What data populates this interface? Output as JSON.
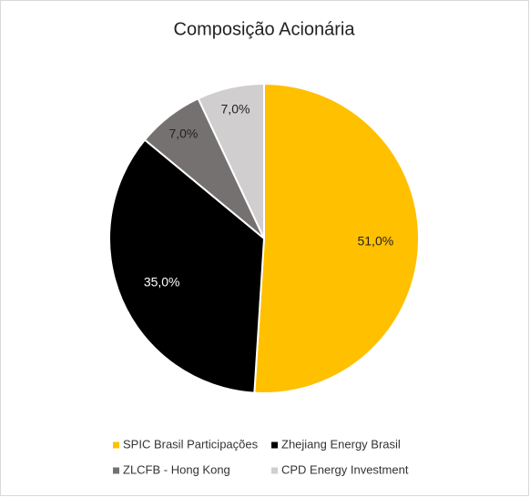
{
  "chart_data": {
    "type": "pie",
    "title": "Composição Acionária",
    "categories": [
      "SPIC Brasil Participações",
      "Zhejiang Energy Brasil",
      "ZLCFB - Hong Kong",
      "CPD Energy Investment"
    ],
    "values": [
      51,
      35,
      7,
      7
    ],
    "value_labels": [
      "51,0%",
      "35,0%",
      "7,0%",
      "7,0%"
    ],
    "colors": [
      "#FFC000",
      "#000000",
      "#767171",
      "#D0CECE"
    ],
    "legend": "bottom"
  }
}
